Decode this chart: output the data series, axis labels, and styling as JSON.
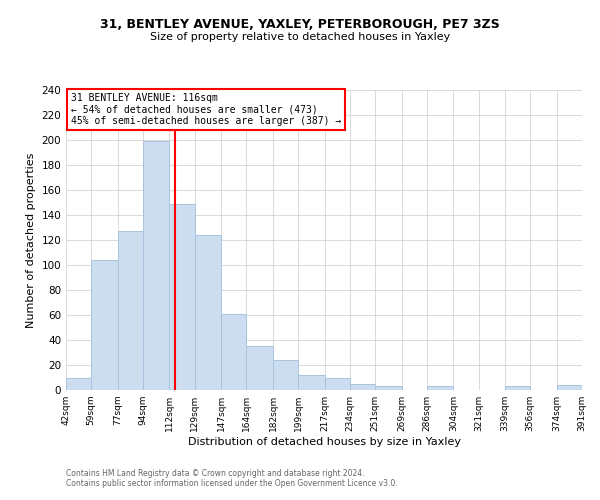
{
  "title": "31, BENTLEY AVENUE, YAXLEY, PETERBOROUGH, PE7 3ZS",
  "subtitle": "Size of property relative to detached houses in Yaxley",
  "xlabel": "Distribution of detached houses by size in Yaxley",
  "ylabel": "Number of detached properties",
  "bar_edges": [
    42,
    59,
    77,
    94,
    112,
    129,
    147,
    164,
    182,
    199,
    217,
    234,
    251,
    269,
    286,
    304,
    321,
    339,
    356,
    374,
    391
  ],
  "bar_heights": [
    10,
    104,
    127,
    199,
    149,
    124,
    61,
    35,
    24,
    12,
    10,
    5,
    3,
    0,
    3,
    0,
    0,
    3,
    0,
    4
  ],
  "bar_color": "#ccddf0",
  "bar_edgecolor": "#a8c4e0",
  "vline_x": 116,
  "vline_color": "red",
  "annotation_title": "31 BENTLEY AVENUE: 116sqm",
  "annotation_line1": "← 54% of detached houses are smaller (473)",
  "annotation_line2": "45% of semi-detached houses are larger (387) →",
  "annotation_box_edgecolor": "red",
  "ylim": [
    0,
    240
  ],
  "yticks": [
    0,
    20,
    40,
    60,
    80,
    100,
    120,
    140,
    160,
    180,
    200,
    220,
    240
  ],
  "xtick_labels": [
    "42sqm",
    "59sqm",
    "77sqm",
    "94sqm",
    "112sqm",
    "129sqm",
    "147sqm",
    "164sqm",
    "182sqm",
    "199sqm",
    "217sqm",
    "234sqm",
    "251sqm",
    "269sqm",
    "286sqm",
    "304sqm",
    "321sqm",
    "339sqm",
    "356sqm",
    "374sqm",
    "391sqm"
  ],
  "footer1": "Contains HM Land Registry data © Crown copyright and database right 2024.",
  "footer2": "Contains public sector information licensed under the Open Government Licence v3.0.",
  "background_color": "#ffffff",
  "grid_color": "#cccccc"
}
